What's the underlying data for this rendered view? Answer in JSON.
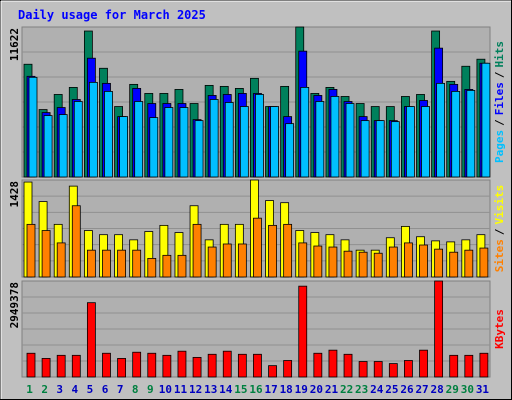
{
  "title": "Daily usage for March 2025",
  "chart_data": [
    {
      "type": "bar",
      "ylim": [
        0,
        11622
      ],
      "yticks": [
        11622
      ],
      "legend_separator": "/",
      "series": [
        {
          "name": "Hits",
          "color": "#00805c",
          "values": [
            8736,
            5226,
            6396,
            6942,
            11310,
            8424,
            5460,
            7176,
            6474,
            6474,
            6786,
            5694,
            7098,
            7020,
            6864,
            7644,
            5460,
            7020,
            11622,
            6474,
            6942,
            6240,
            5694,
            5460,
            5460,
            6240,
            6396,
            11310,
            7410,
            8580,
            9126
          ]
        },
        {
          "name": "Files",
          "color": "#0000ff",
          "values": [
            7800,
            4992,
            5382,
            6006,
            9204,
            7254,
            4680,
            6864,
            5694,
            5694,
            5694,
            4446,
            6318,
            6396,
            6474,
            6474,
            5460,
            4680,
            9750,
            6318,
            6786,
            5850,
            4680,
            4368,
            4368,
            5460,
            5928,
            9984,
            7176,
            6786,
            8814
          ]
        },
        {
          "name": "Pages",
          "color": "#00c0ff",
          "values": [
            7722,
            4758,
            4836,
            5850,
            7332,
            6630,
            4680,
            5850,
            4602,
            5382,
            5382,
            4368,
            6006,
            5772,
            5460,
            6396,
            5460,
            4134,
            6942,
            5850,
            6240,
            5694,
            4368,
            4368,
            4290,
            5460,
            5460,
            7254,
            6630,
            6708,
            8814
          ]
        }
      ]
    },
    {
      "type": "bar",
      "ylim": [
        0,
        1428
      ],
      "yticks": [
        1428
      ],
      "legend_separator": "/",
      "series": [
        {
          "name": "Visits",
          "color": "#ffff00",
          "values": [
            1398,
            1110,
            775,
            1338,
            684,
            623,
            623,
            547,
            669,
            760,
            654,
            1049,
            547,
            775,
            775,
            1428,
            1125,
            1094,
            684,
            654,
            623,
            547,
            395,
            395,
            578,
            745,
            593,
            532,
            517,
            547,
            623
          ]
        },
        {
          "name": "Sites",
          "color": "#ff8000",
          "values": [
            775,
            684,
            502,
            1049,
            395,
            395,
            395,
            395,
            274,
            319,
            319,
            775,
            441,
            486,
            486,
            866,
            760,
            775,
            502,
            456,
            441,
            380,
            365,
            350,
            441,
            502,
            471,
            410,
            365,
            395,
            426
          ]
        }
      ]
    },
    {
      "type": "bar",
      "ylim": [
        0,
        2949378
      ],
      "yticks": [
        2949378
      ],
      "categories": [
        "1",
        "2",
        "3",
        "4",
        "5",
        "6",
        "7",
        "8",
        "9",
        "10",
        "11",
        "12",
        "13",
        "14",
        "15",
        "16",
        "17",
        "18",
        "19",
        "20",
        "21",
        "22",
        "23",
        "24",
        "25",
        "26",
        "27",
        "28",
        "29",
        "30",
        "31"
      ],
      "category_colors": [
        "#008040",
        "#008040",
        "#0000c0",
        "#0000c0",
        "#0000c0",
        "#0000c0",
        "#0000c0",
        "#008040",
        "#008040",
        "#0000c0",
        "#0000c0",
        "#0000c0",
        "#0000c0",
        "#0000c0",
        "#008040",
        "#008040",
        "#0000c0",
        "#0000c0",
        "#0000c0",
        "#0000c0",
        "#0000c0",
        "#008040",
        "#008040",
        "#0000c0",
        "#0000c0",
        "#0000c0",
        "#0000c0",
        "#0000c0",
        "#008040",
        "#008040",
        "#0000c0"
      ],
      "series": [
        {
          "name": "KBytes",
          "color": "#ff0000",
          "values": [
            729422,
            570852,
            665994,
            665994,
            2283408,
            729422,
            570852,
            761136,
            729422,
            665994,
            792850,
            602566,
            697708,
            792850,
            697708,
            697708,
            348854,
            507424,
            2790832,
            729422,
            824564,
            697708,
            475710,
            475710,
            412282,
            507424,
            824564,
            2949378,
            665994,
            665994,
            729422
          ]
        }
      ]
    }
  ]
}
